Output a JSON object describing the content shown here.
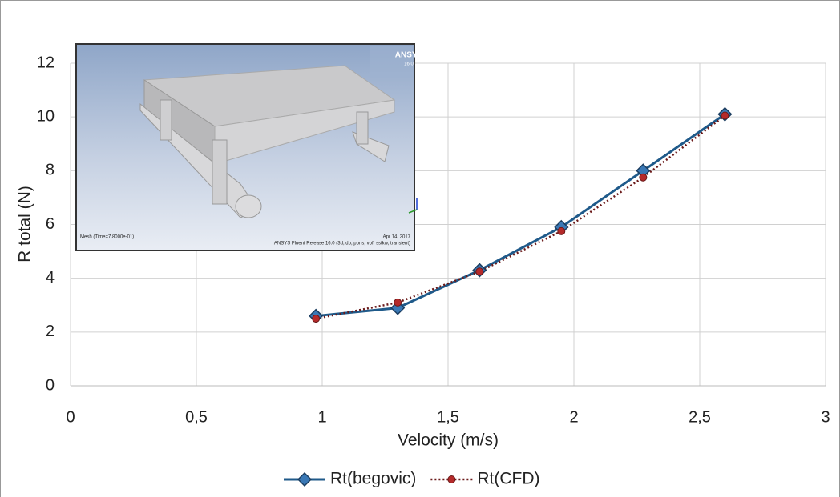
{
  "chart_data": {
    "type": "line",
    "x_label": "Velocity (m/s)",
    "y_label": "R total (N)",
    "x": [
      0.975,
      1.3,
      1.625,
      1.95,
      2.275,
      2.6
    ],
    "series": [
      {
        "name": "Rt(begovic)",
        "color": "#1f5a8a",
        "marker": "diamond",
        "values": [
          2.6,
          2.9,
          4.3,
          5.9,
          8.0,
          10.1
        ]
      },
      {
        "name": "Rt(CFD)",
        "color": "#6b1a1a",
        "marker": "circle",
        "dash": "dotted",
        "values": [
          2.5,
          3.1,
          4.25,
          5.75,
          7.75,
          10.05
        ]
      }
    ],
    "xlim": [
      0,
      3
    ],
    "xticks": [
      0,
      {
        "value": 0.5,
        "label": "0,5"
      },
      1,
      {
        "value": 1.5,
        "label": "1,5"
      },
      2,
      {
        "value": 2.5,
        "label": "2,5"
      },
      3
    ],
    "ylim": [
      0,
      12
    ],
    "yticks": [
      0,
      2,
      4,
      6,
      8,
      10,
      12
    ],
    "grid": true,
    "legend": "bottom",
    "inset": {
      "brand": "ANSYS",
      "version": "16.0",
      "left_note": "Mesh (Time=7.8000e-01)",
      "date": "Apr 14, 2017",
      "release": "ANSYS Fluent Release 16.0 (3d, dp, pbns, vof, sstkw, transient)"
    }
  }
}
